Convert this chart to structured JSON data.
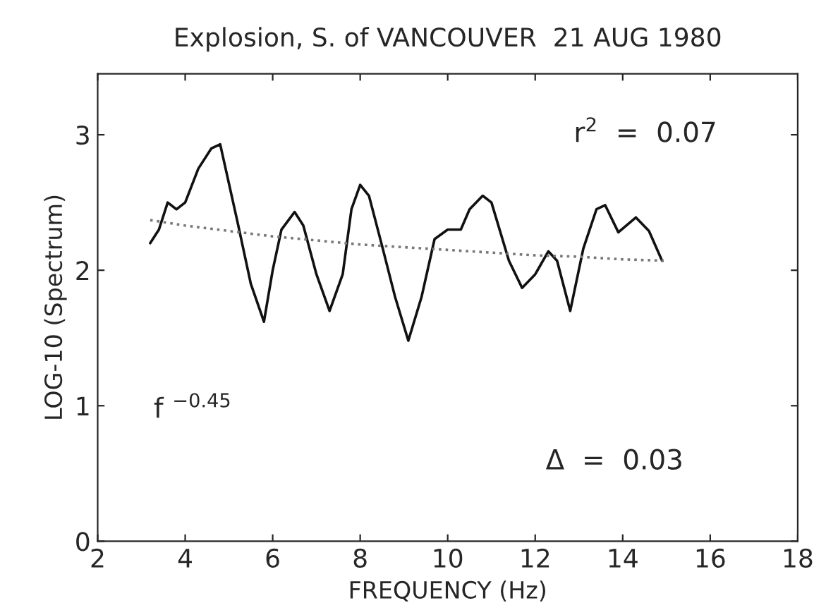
{
  "chart_data": {
    "type": "line",
    "title": "Explosion, S. of VANCOUVER  21 AUG 1980",
    "xlabel": "FREQUENCY (Hz)",
    "ylabel": "LOG-10 (Spectrum)",
    "xlim": [
      2,
      18
    ],
    "xticks": [
      2,
      4,
      6,
      8,
      10,
      12,
      14,
      16,
      18
    ],
    "ylim": [
      0,
      3.45
    ],
    "yticks": [
      0,
      1,
      2,
      3
    ],
    "grid": false,
    "legend": false,
    "series": [
      {
        "color": "#111111",
        "line_style": "solid",
        "x": [
          3.2,
          3.4,
          3.6,
          3.8,
          4.0,
          4.3,
          4.6,
          4.8,
          5.2,
          5.5,
          5.8,
          6.0,
          6.2,
          6.5,
          6.7,
          7.0,
          7.3,
          7.6,
          7.8,
          8.0,
          8.2,
          8.5,
          8.8,
          9.1,
          9.4,
          9.7,
          10.0,
          10.3,
          10.5,
          10.8,
          11.0,
          11.4,
          11.7,
          12.0,
          12.3,
          12.5,
          12.8,
          13.1,
          13.4,
          13.6,
          13.9,
          14.3,
          14.6,
          14.9
        ],
        "values": [
          2.2,
          2.3,
          2.5,
          2.45,
          2.5,
          2.75,
          2.9,
          2.93,
          2.35,
          1.9,
          1.62,
          2.0,
          2.3,
          2.43,
          2.33,
          1.97,
          1.7,
          1.97,
          2.45,
          2.63,
          2.55,
          2.18,
          1.8,
          1.48,
          1.8,
          2.23,
          2.3,
          2.3,
          2.45,
          2.55,
          2.5,
          2.07,
          1.87,
          1.97,
          2.14,
          2.07,
          1.7,
          2.16,
          2.45,
          2.48,
          2.28,
          2.39,
          2.29,
          2.07
        ]
      },
      {
        "color": "#777777",
        "line_style": "dotted",
        "x": [
          3.2,
          4,
          5,
          6,
          7,
          8,
          9,
          10,
          11,
          12,
          13,
          14,
          15
        ],
        "values": [
          2.37,
          2.33,
          2.29,
          2.25,
          2.22,
          2.19,
          2.17,
          2.15,
          2.13,
          2.11,
          2.1,
          2.08,
          2.07
        ]
      }
    ],
    "annotations": [
      "r$^{2}$  =  0.07",
      "f $^{−0.45}$",
      "Δ  =  0.03"
    ]
  }
}
